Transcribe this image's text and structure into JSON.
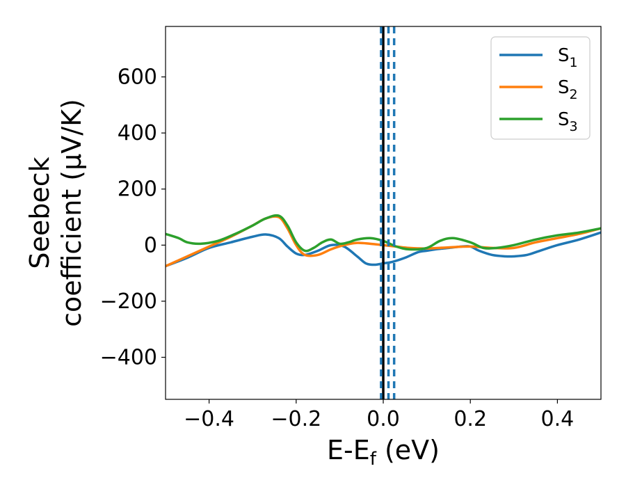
{
  "chart_data": {
    "type": "line",
    "title": "",
    "xlabel": "E-E_f (eV)",
    "xlabel_parts": {
      "main": "E-E",
      "subscript": "f",
      "rest": " (eV)"
    },
    "ylabel": "Seebeck coefficient (μV/K)",
    "ylabel_lines": [
      "Seebeck",
      "coefficient  (μV/K)"
    ],
    "xlim": [
      -0.5,
      0.5
    ],
    "ylim": [
      -550,
      780
    ],
    "xticks": [
      -0.4,
      -0.2,
      0.0,
      0.2,
      0.4
    ],
    "xtick_labels": [
      "−0.4",
      "−0.2",
      "0.0",
      "0.2",
      "0.4"
    ],
    "yticks": [
      -400,
      -200,
      0,
      200,
      400,
      600
    ],
    "ytick_labels": [
      "−400",
      "−200",
      "0",
      "200",
      "400",
      "600"
    ],
    "grid": false,
    "legend_position": "top-right",
    "series": [
      {
        "name": "S",
        "subscript": "1",
        "color": "#1f77b4",
        "x": [
          -0.5,
          -0.45,
          -0.4,
          -0.35,
          -0.3,
          -0.27,
          -0.24,
          -0.22,
          -0.2,
          -0.18,
          -0.15,
          -0.12,
          -0.09,
          -0.06,
          -0.04,
          -0.02,
          0.0,
          0.02,
          0.05,
          0.08,
          0.1,
          0.12,
          0.15,
          0.18,
          0.2,
          0.22,
          0.25,
          0.28,
          0.3,
          0.33,
          0.36,
          0.4,
          0.45,
          0.5
        ],
        "y": [
          -75,
          -45,
          -10,
          10,
          30,
          38,
          25,
          -5,
          -30,
          -35,
          -20,
          0,
          -5,
          -40,
          -65,
          -70,
          -65,
          -60,
          -45,
          -25,
          -20,
          -15,
          -10,
          -5,
          -5,
          -20,
          -35,
          -40,
          -40,
          -35,
          -20,
          0,
          20,
          45
        ]
      },
      {
        "name": "S",
        "subscript": "2",
        "color": "#ff7f0e",
        "x": [
          -0.5,
          -0.45,
          -0.4,
          -0.35,
          -0.3,
          -0.27,
          -0.24,
          -0.22,
          -0.2,
          -0.18,
          -0.15,
          -0.12,
          -0.09,
          -0.06,
          -0.03,
          0.0,
          0.03,
          0.06,
          0.1,
          0.15,
          0.2,
          0.25,
          0.3,
          0.35,
          0.4,
          0.45,
          0.5
        ],
        "y": [
          -75,
          -40,
          -5,
          30,
          70,
          95,
          100,
          60,
          0,
          -35,
          -35,
          -15,
          0,
          8,
          5,
          0,
          -5,
          -10,
          -12,
          -8,
          -5,
          -10,
          -10,
          10,
          25,
          40,
          60
        ]
      },
      {
        "name": "S",
        "subscript": "3",
        "color": "#2ca02c",
        "x": [
          -0.5,
          -0.47,
          -0.45,
          -0.42,
          -0.38,
          -0.34,
          -0.3,
          -0.27,
          -0.24,
          -0.22,
          -0.2,
          -0.18,
          -0.16,
          -0.14,
          -0.12,
          -0.1,
          -0.08,
          -0.06,
          -0.03,
          0.0,
          0.03,
          0.06,
          0.1,
          0.13,
          0.16,
          0.2,
          0.23,
          0.26,
          0.3,
          0.35,
          0.4,
          0.45,
          0.5
        ],
        "y": [
          40,
          25,
          10,
          5,
          15,
          40,
          70,
          95,
          105,
          70,
          10,
          -20,
          -10,
          10,
          20,
          5,
          10,
          20,
          25,
          15,
          -5,
          -15,
          -10,
          15,
          25,
          10,
          -10,
          -10,
          0,
          20,
          35,
          45,
          60
        ]
      }
    ],
    "vertical_lines": [
      {
        "x": 0.0,
        "color": "#000000",
        "style": "solid"
      },
      {
        "x": -0.005,
        "color": "#1f77b4",
        "style": "dashed"
      },
      {
        "x": 0.012,
        "color": "#1f77b4",
        "style": "dashed"
      },
      {
        "x": 0.025,
        "color": "#1f77b4",
        "style": "dashed"
      }
    ]
  }
}
